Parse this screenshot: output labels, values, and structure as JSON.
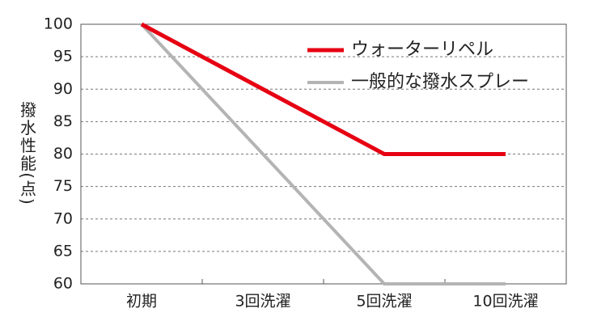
{
  "chart_data": {
    "type": "line",
    "y_label": "撥水性能(点)",
    "categories": [
      "初期",
      "3回洗濯",
      "5回洗濯",
      "10回洗濯"
    ],
    "series": [
      {
        "name": "ウォーターリペル",
        "color": "#e60012",
        "values": [
          100,
          90,
          80,
          80
        ]
      },
      {
        "name": "一般的な撥水スプレー",
        "color": "#b4b4b4",
        "values": [
          100,
          80,
          60,
          60
        ]
      }
    ],
    "ylim": [
      60,
      100
    ],
    "yticks": [
      60,
      65,
      70,
      75,
      80,
      85,
      90,
      95,
      100
    ],
    "grid": true,
    "legend": "top-right"
  }
}
